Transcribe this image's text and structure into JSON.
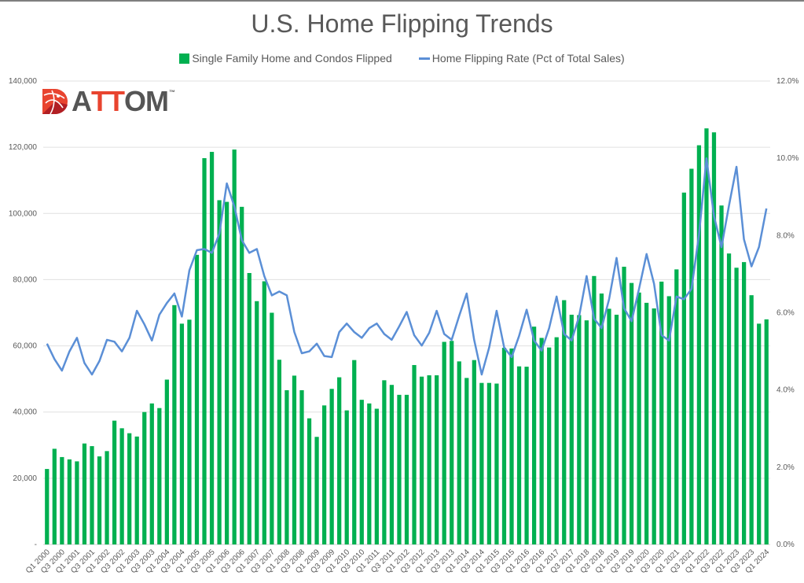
{
  "logo": {
    "text_a": "A",
    "text_tt": "TT",
    "text_om": "OM",
    "tm": "™",
    "colors": {
      "red": "#e8442f",
      "darkred": "#b11f24",
      "gray": "#555555"
    }
  },
  "colors": {
    "bars": "#00b050",
    "line": "#5b8fd6",
    "grid": "#e0e0e0",
    "text": "#595959"
  },
  "chart_data": {
    "type": "bar+line",
    "title": "U.S. Home Flipping Trends",
    "legend_placement": "top-center",
    "legend": [
      "Single Family Home and Condos Flipped",
      "Home Flipping Rate (Pct of Total Sales)"
    ],
    "y_left": {
      "ylim": [
        0,
        140000
      ],
      "ticks": [
        "-",
        "20,000",
        "40,000",
        "60,000",
        "80,000",
        "100,000",
        "120,000",
        "140,000"
      ],
      "tick_values": [
        0,
        20000,
        40000,
        60000,
        80000,
        100000,
        120000,
        140000
      ]
    },
    "y_right": {
      "ylim": [
        0,
        12
      ],
      "ticks": [
        "0.0%",
        "2.0%",
        "4.0%",
        "6.0%",
        "8.0%",
        "10.0%",
        "12.0%"
      ],
      "tick_values": [
        0,
        2,
        4,
        6,
        8,
        10,
        12
      ]
    },
    "grid": true,
    "x_tick_labels": [
      "Q1 2000",
      "Q3 2000",
      "Q1 2001",
      "Q3 2001",
      "Q1 2002",
      "Q3 2002",
      "Q1 2003",
      "Q3 2003",
      "Q1 2004",
      "Q3 2004",
      "Q1 2005",
      "Q3 2005",
      "Q1 2006",
      "Q3 2006",
      "Q1 2007",
      "Q3 2007",
      "Q1 2008",
      "Q3 2008",
      "Q1 2009",
      "Q3 2009",
      "Q1 2010",
      "Q3 2010",
      "Q1 2011",
      "Q3 2011",
      "Q1 2012",
      "Q3 2012",
      "Q1 2013",
      "Q3 2013",
      "Q1 2014",
      "Q3 2014",
      "Q1 2015",
      "Q3 2015",
      "Q1 2016",
      "Q3 2016",
      "Q1 2017",
      "Q3 2017",
      "Q1 2018",
      "Q3 2018",
      "Q1 2019",
      "Q3 2019",
      "Q1 2020",
      "Q3 2020",
      "Q1 2021",
      "Q3 2021",
      "Q1 2022",
      "Q3 2022",
      "Q1 2023",
      "Q3 2023",
      "Q1 2024"
    ],
    "series": [
      {
        "name": "Single Family Home and Condos Flipped",
        "type": "bar",
        "axis": "left",
        "values": [
          22800,
          28900,
          26400,
          25700,
          25100,
          30500,
          29700,
          26600,
          28200,
          37400,
          35100,
          33600,
          32600,
          40000,
          42600,
          41200,
          49800,
          72300,
          66700,
          67900,
          87500,
          116700,
          118600,
          104000,
          103500,
          119300,
          102000,
          82000,
          73500,
          79500,
          70000,
          55800,
          46600,
          51000,
          46600,
          38100,
          32500,
          42000,
          47000,
          50500,
          40500,
          55700,
          43700,
          42600,
          41000,
          49600,
          48200,
          45200,
          45200,
          54200,
          50700,
          51100,
          51100,
          61200,
          61500,
          55300,
          50300,
          55700,
          48800,
          48800,
          48600,
          59400,
          59200,
          53800,
          53700,
          65800,
          62400,
          59500,
          62600,
          73800,
          69400,
          69300,
          67700,
          81100,
          75800,
          71200,
          69400,
          83900,
          79000,
          76100,
          73000,
          71300,
          79400,
          75000,
          83100,
          106300,
          113500,
          120600,
          125700,
          124500,
          102400,
          87900,
          83600,
          85300,
          75300,
          66700,
          68000
        ]
      },
      {
        "name": "Home Flipping Rate (Pct of Total Sales)",
        "type": "line",
        "axis": "right",
        "values": [
          5.2,
          4.8,
          4.5,
          5.0,
          5.35,
          4.7,
          4.4,
          4.75,
          5.3,
          5.25,
          5.0,
          5.35,
          6.05,
          5.7,
          5.28,
          5.95,
          6.25,
          6.5,
          5.9,
          7.1,
          7.62,
          7.65,
          7.55,
          8.05,
          9.35,
          8.75,
          7.88,
          7.55,
          7.65,
          6.95,
          6.45,
          6.55,
          6.45,
          5.5,
          4.95,
          5.0,
          5.2,
          4.88,
          4.85,
          5.5,
          5.72,
          5.5,
          5.35,
          5.6,
          5.72,
          5.45,
          5.3,
          5.65,
          6.02,
          5.42,
          5.15,
          5.48,
          6.05,
          5.45,
          5.3,
          5.92,
          6.5,
          5.3,
          4.4,
          5.1,
          6.05,
          5.1,
          4.85,
          5.4,
          6.08,
          5.28,
          5.02,
          5.6,
          6.42,
          5.45,
          5.28,
          5.9,
          6.95,
          5.85,
          5.6,
          6.35,
          7.42,
          6.12,
          5.78,
          6.62,
          7.52,
          6.75,
          5.42,
          5.28,
          6.42,
          6.35,
          6.62,
          8.02,
          10.0,
          8.5,
          7.7,
          8.78,
          9.78,
          7.9,
          7.2,
          7.7,
          8.7
        ]
      }
    ]
  }
}
